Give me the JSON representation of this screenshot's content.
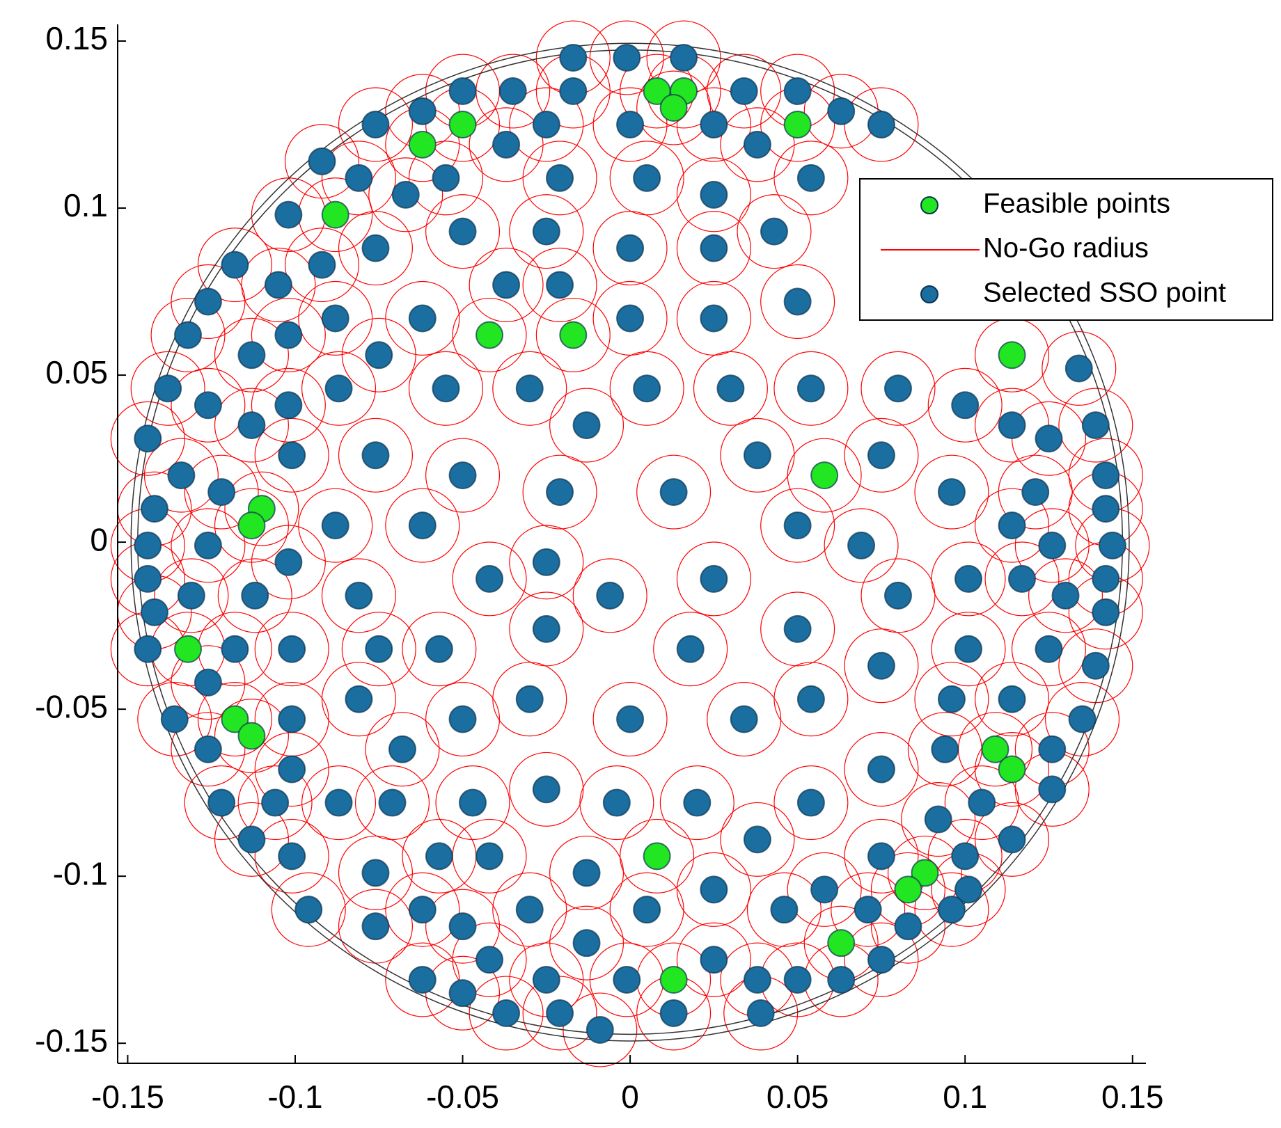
{
  "chart_data": {
    "type": "scatter",
    "xlim": [
      -0.153,
      0.154
    ],
    "ylim": [
      -0.156,
      0.155
    ],
    "xticks": [
      -0.15,
      -0.1,
      -0.05,
      0,
      0.05,
      0.1,
      0.15
    ],
    "yticks": [
      -0.15,
      -0.1,
      -0.05,
      0,
      0.05,
      0.1,
      0.15
    ],
    "boundary_radii": [
      0.147,
      0.149
    ],
    "legend": "upper right",
    "series": [
      {
        "name": "Feasible points",
        "color": "#22e622",
        "x": [
          0.008,
          0.016,
          0.013,
          -0.05,
          -0.062,
          0.05,
          -0.088,
          -0.042,
          -0.017,
          0.114,
          0.058,
          -0.11,
          -0.113,
          -0.132,
          -0.118,
          -0.113,
          0.109,
          0.114,
          0.008,
          0.088,
          0.083,
          0.063,
          0.013
        ],
        "y": [
          0.135,
          0.135,
          0.13,
          0.125,
          0.119,
          0.125,
          0.098,
          0.062,
          0.062,
          0.056,
          0.02,
          0.01,
          0.005,
          -0.032,
          -0.053,
          -0.058,
          -0.062,
          -0.068,
          -0.094,
          -0.099,
          -0.104,
          -0.12,
          -0.131
        ]
      },
      {
        "name": "No-Go radius",
        "color": "#ff0000",
        "radius": 0.011
      },
      {
        "name": "Selected SSO point",
        "color": "#1a6ea0",
        "x": [
          -0.017,
          -0.001,
          0.016,
          -0.05,
          -0.035,
          -0.017,
          0.034,
          0.05,
          -0.062,
          0.063,
          -0.076,
          -0.025,
          0,
          0.025,
          0.075,
          -0.037,
          0.038,
          -0.092,
          -0.081,
          -0.055,
          -0.021,
          0.005,
          0.054,
          -0.067,
          0.025,
          -0.102,
          -0.05,
          -0.025,
          0.043,
          -0.076,
          0,
          0.025,
          -0.118,
          -0.092,
          -0.105,
          -0.037,
          -0.021,
          -0.126,
          0.05,
          -0.088,
          -0.062,
          0,
          0.025,
          -0.132,
          -0.102,
          -0.113,
          -0.075,
          0.134,
          -0.138,
          -0.087,
          -0.055,
          -0.03,
          0.005,
          0.03,
          0.054,
          0.08,
          -0.126,
          -0.102,
          0.1,
          -0.113,
          -0.013,
          0.114,
          0.139,
          -0.144,
          0.125,
          -0.101,
          -0.076,
          0.038,
          0.075,
          -0.134,
          -0.05,
          0.142,
          -0.122,
          -0.021,
          0.013,
          0.096,
          0.121,
          -0.142,
          0.142,
          -0.088,
          -0.062,
          0.05,
          0.114,
          -0.144,
          -0.126,
          0.069,
          0.126,
          0.144,
          -0.102,
          -0.025,
          -0.144,
          -0.042,
          0.025,
          0.101,
          0.117,
          0.142,
          -0.131,
          -0.112,
          -0.081,
          -0.006,
          0.08,
          0.13,
          -0.142,
          0.142,
          -0.025,
          0.05,
          -0.144,
          -0.118,
          -0.101,
          -0.075,
          -0.057,
          0.018,
          0.101,
          0.125,
          0.075,
          0.139,
          -0.126,
          -0.081,
          -0.03,
          0.054,
          0.096,
          0.114,
          -0.136,
          -0.101,
          -0.05,
          0,
          0.034,
          0.135,
          -0.126,
          -0.068,
          0.094,
          0.126,
          -0.101,
          0.075,
          -0.025,
          0.126,
          -0.122,
          -0.106,
          -0.087,
          -0.071,
          -0.047,
          -0.004,
          0.02,
          0.054,
          0.105,
          0.092,
          -0.113,
          0.038,
          0.114,
          -0.101,
          -0.057,
          -0.042,
          0.075,
          0.1,
          -0.076,
          -0.013,
          0.025,
          0.058,
          0.101,
          -0.096,
          -0.062,
          -0.03,
          0.005,
          0.046,
          0.071,
          0.096,
          -0.076,
          -0.05,
          0.083,
          -0.013,
          -0.042,
          0.025,
          0.075,
          -0.062,
          -0.025,
          -0.001,
          0.038,
          0.05,
          0.063,
          -0.05,
          -0.037,
          -0.021,
          0.013,
          0.039,
          -0.009
        ],
        "y": [
          0.145,
          0.145,
          0.145,
          0.135,
          0.135,
          0.135,
          0.135,
          0.135,
          0.129,
          0.129,
          0.125,
          0.125,
          0.125,
          0.125,
          0.125,
          0.119,
          0.119,
          0.114,
          0.109,
          0.109,
          0.109,
          0.109,
          0.109,
          0.104,
          0.104,
          0.098,
          0.093,
          0.093,
          0.093,
          0.088,
          0.088,
          0.088,
          0.083,
          0.083,
          0.077,
          0.077,
          0.077,
          0.072,
          0.072,
          0.067,
          0.067,
          0.067,
          0.067,
          0.062,
          0.062,
          0.056,
          0.056,
          0.052,
          0.046,
          0.046,
          0.046,
          0.046,
          0.046,
          0.046,
          0.046,
          0.046,
          0.041,
          0.041,
          0.041,
          0.035,
          0.035,
          0.035,
          0.035,
          0.031,
          0.031,
          0.026,
          0.026,
          0.026,
          0.026,
          0.02,
          0.02,
          0.02,
          0.015,
          0.015,
          0.015,
          0.015,
          0.015,
          0.01,
          0.01,
          0.005,
          0.005,
          0.005,
          0.005,
          -0.001,
          -0.001,
          -0.001,
          -0.001,
          -0.001,
          -0.006,
          -0.006,
          -0.011,
          -0.011,
          -0.011,
          -0.011,
          -0.011,
          -0.011,
          -0.016,
          -0.016,
          -0.016,
          -0.016,
          -0.016,
          -0.016,
          -0.021,
          -0.021,
          -0.026,
          -0.026,
          -0.032,
          -0.032,
          -0.032,
          -0.032,
          -0.032,
          -0.032,
          -0.032,
          -0.032,
          -0.037,
          -0.037,
          -0.042,
          -0.047,
          -0.047,
          -0.047,
          -0.047,
          -0.047,
          -0.053,
          -0.053,
          -0.053,
          -0.053,
          -0.053,
          -0.053,
          -0.062,
          -0.062,
          -0.062,
          -0.062,
          -0.068,
          -0.068,
          -0.074,
          -0.074,
          -0.078,
          -0.078,
          -0.078,
          -0.078,
          -0.078,
          -0.078,
          -0.078,
          -0.078,
          -0.078,
          -0.083,
          -0.089,
          -0.089,
          -0.089,
          -0.094,
          -0.094,
          -0.094,
          -0.094,
          -0.094,
          -0.099,
          -0.099,
          -0.104,
          -0.104,
          -0.104,
          -0.11,
          -0.11,
          -0.11,
          -0.11,
          -0.11,
          -0.11,
          -0.11,
          -0.115,
          -0.115,
          -0.115,
          -0.12,
          -0.125,
          -0.125,
          -0.125,
          -0.131,
          -0.131,
          -0.131,
          -0.131,
          -0.131,
          -0.131,
          -0.135,
          -0.141,
          -0.141,
          -0.141,
          -0.141,
          -0.146
        ]
      }
    ]
  }
}
